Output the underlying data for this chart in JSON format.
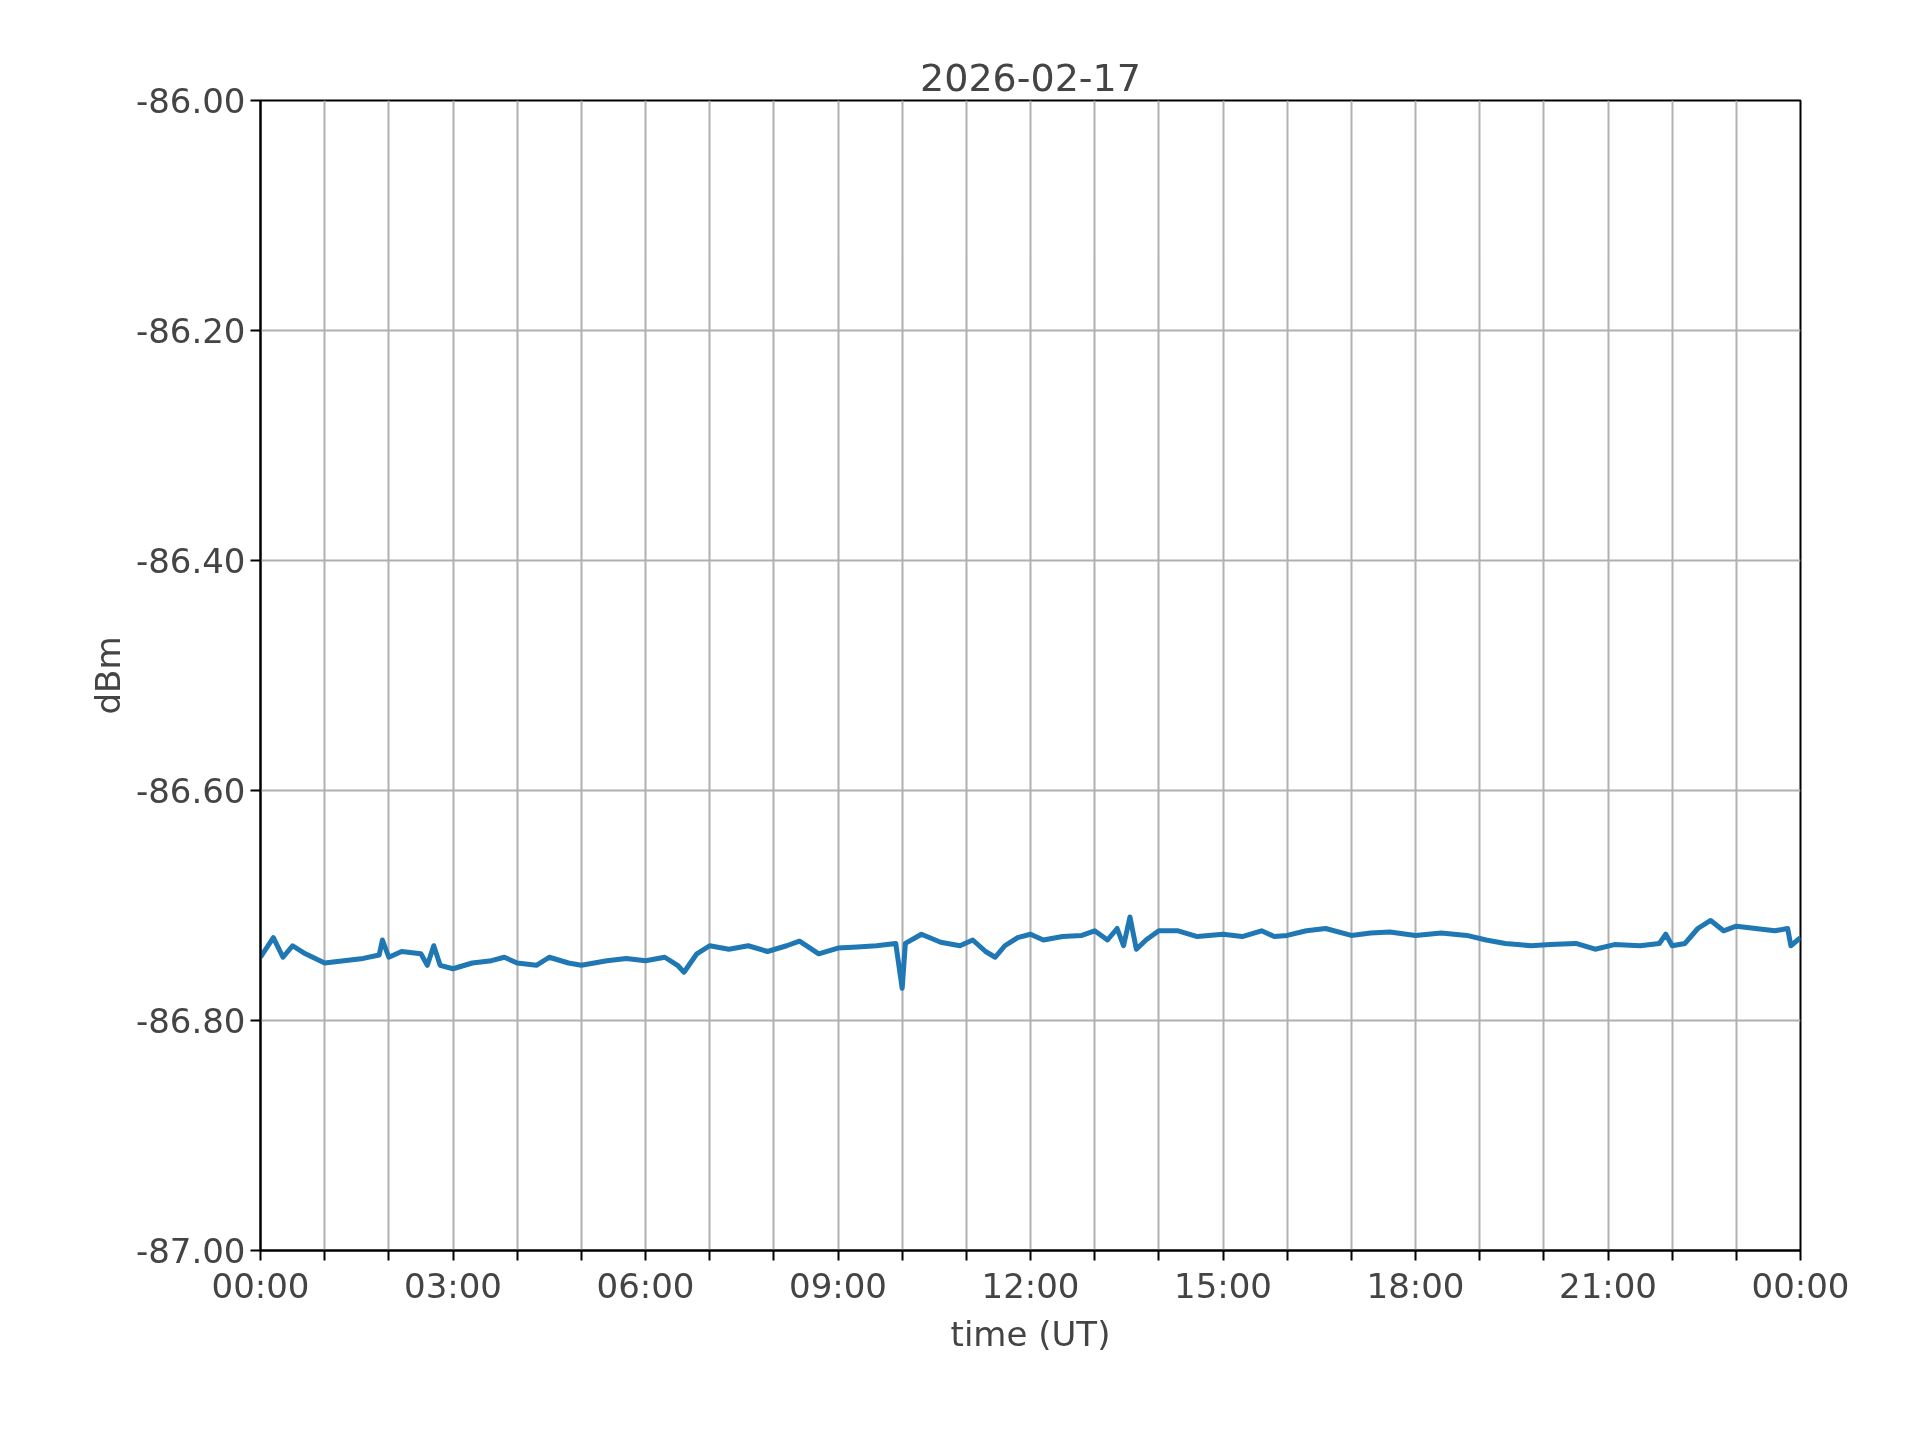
{
  "chart_data": {
    "type": "line",
    "title": "2026-02-17",
    "xlabel": "time (UT)",
    "ylabel": "dBm",
    "x": [
      0,
      0.2,
      0.35,
      0.5,
      0.7,
      1.0,
      1.3,
      1.6,
      1.85,
      1.9,
      2.0,
      2.2,
      2.5,
      2.6,
      2.7,
      2.8,
      3.0,
      3.3,
      3.6,
      3.8,
      4.0,
      4.3,
      4.5,
      4.8,
      5.0,
      5.4,
      5.7,
      6.0,
      6.3,
      6.5,
      6.6,
      6.8,
      7.0,
      7.3,
      7.6,
      7.9,
      8.2,
      8.4,
      8.7,
      9.0,
      9.3,
      9.6,
      9.9,
      10.0,
      10.05,
      10.3,
      10.6,
      10.9,
      11.1,
      11.3,
      11.45,
      11.6,
      11.8,
      12.0,
      12.2,
      12.5,
      12.8,
      13.0,
      13.2,
      13.35,
      13.45,
      13.55,
      13.65,
      13.8,
      14.0,
      14.3,
      14.6,
      15.0,
      15.3,
      15.6,
      15.8,
      16.0,
      16.3,
      16.6,
      17.0,
      17.3,
      17.6,
      18.0,
      18.4,
      18.8,
      19.1,
      19.4,
      19.8,
      20.1,
      20.5,
      20.8,
      21.1,
      21.5,
      21.8,
      21.9,
      22.0,
      22.2,
      22.4,
      22.6,
      22.8,
      23.0,
      23.3,
      23.6,
      23.8,
      23.85,
      24.0
    ],
    "series": [
      {
        "color": "#1f77b4",
        "values": [
          -86.745,
          -86.728,
          -86.745,
          -86.735,
          -86.742,
          -86.75,
          -86.748,
          -86.746,
          -86.743,
          -86.73,
          -86.745,
          -86.74,
          -86.742,
          -86.752,
          -86.735,
          -86.752,
          -86.755,
          -86.75,
          -86.748,
          -86.745,
          -86.75,
          -86.752,
          -86.745,
          -86.75,
          -86.752,
          -86.748,
          -86.746,
          -86.748,
          -86.745,
          -86.752,
          -86.758,
          -86.742,
          -86.735,
          -86.738,
          -86.735,
          -86.74,
          -86.735,
          -86.731,
          -86.742,
          -86.737,
          -86.736,
          -86.735,
          -86.733,
          -86.772,
          -86.733,
          -86.725,
          -86.732,
          -86.735,
          -86.73,
          -86.74,
          -86.745,
          -86.735,
          -86.728,
          -86.725,
          -86.73,
          -86.727,
          -86.726,
          -86.722,
          -86.73,
          -86.72,
          -86.735,
          -86.71,
          -86.738,
          -86.73,
          -86.722,
          -86.722,
          -86.727,
          -86.725,
          -86.727,
          -86.722,
          -86.727,
          -86.726,
          -86.722,
          -86.72,
          -86.726,
          -86.724,
          -86.723,
          -86.726,
          -86.724,
          -86.726,
          -86.73,
          -86.733,
          -86.735,
          -86.734,
          -86.733,
          -86.738,
          -86.734,
          -86.735,
          -86.733,
          -86.725,
          -86.735,
          -86.733,
          -86.72,
          -86.713,
          -86.722,
          -86.718,
          -86.72,
          -86.722,
          -86.72,
          -86.735,
          -86.728
        ]
      }
    ],
    "xlim": [
      0,
      24
    ],
    "xticks": [
      {
        "value": 0,
        "label": "00:00"
      },
      {
        "value": 1,
        "label": null
      },
      {
        "value": 2,
        "label": null
      },
      {
        "value": 3,
        "label": "03:00"
      },
      {
        "value": 4,
        "label": null
      },
      {
        "value": 5,
        "label": null
      },
      {
        "value": 6,
        "label": "06:00"
      },
      {
        "value": 7,
        "label": null
      },
      {
        "value": 8,
        "label": null
      },
      {
        "value": 9,
        "label": "09:00"
      },
      {
        "value": 10,
        "label": null
      },
      {
        "value": 11,
        "label": null
      },
      {
        "value": 12,
        "label": "12:00"
      },
      {
        "value": 13,
        "label": null
      },
      {
        "value": 14,
        "label": null
      },
      {
        "value": 15,
        "label": "15:00"
      },
      {
        "value": 16,
        "label": null
      },
      {
        "value": 17,
        "label": null
      },
      {
        "value": 18,
        "label": "18:00"
      },
      {
        "value": 19,
        "label": null
      },
      {
        "value": 20,
        "label": null
      },
      {
        "value": 21,
        "label": "21:00"
      },
      {
        "value": 22,
        "label": null
      },
      {
        "value": 23,
        "label": null
      },
      {
        "value": 24,
        "label": "00:00"
      }
    ],
    "ylim": [
      -87,
      -86
    ],
    "yticks": [
      {
        "value": -87,
        "label": "-87.00"
      },
      {
        "value": -86.8,
        "label": "-86.80"
      },
      {
        "value": -86.6,
        "label": "-86.60"
      },
      {
        "value": -86.4,
        "label": "-86.40"
      },
      {
        "value": -86.2,
        "label": "-86.20"
      },
      {
        "value": -86,
        "label": "-86.00"
      }
    ],
    "grid": true,
    "marker": "none",
    "line_style": "solid"
  }
}
